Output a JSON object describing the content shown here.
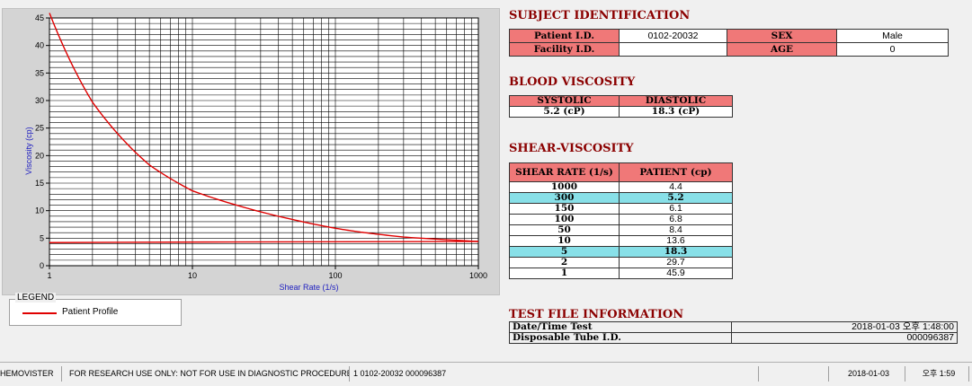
{
  "chart_data": {
    "type": "line",
    "xscale": "log",
    "xlabel": "Shear Rate (1/s)",
    "ylabel": "Viscosity (cp)",
    "xlim": [
      1,
      1000
    ],
    "ylim": [
      0,
      45
    ],
    "x_ticks": [
      "1",
      "10",
      "100",
      "1000"
    ],
    "y_ticks": [
      "0",
      "5",
      "10",
      "15",
      "20",
      "25",
      "30",
      "35",
      "40",
      "45"
    ],
    "grid": true,
    "series": [
      {
        "name": "Patient Profile",
        "color": "#e00000",
        "x": [
          1,
          2,
          5,
          10,
          50,
          100,
          150,
          300,
          1000
        ],
        "y": [
          45.9,
          29.7,
          18.3,
          13.6,
          8.4,
          6.8,
          6.1,
          5.2,
          4.4
        ]
      },
      {
        "name": "",
        "color": "#e00000",
        "x": [
          1,
          12,
          1000
        ],
        "y": [
          4.2,
          4.3,
          4.4
        ]
      }
    ]
  },
  "legend": {
    "title": "LEGEND",
    "label": "Patient Profile"
  },
  "subject": {
    "title": "SUBJECT IDENTIFICATION",
    "patient_label": "Patient I.D.",
    "patient_value": "0102-20032",
    "sex_label": "SEX",
    "sex_value": "Male",
    "facility_label": "Facility I.D.",
    "facility_value": "",
    "age_label": "AGE",
    "age_value": "0"
  },
  "blood": {
    "title": "BLOOD VISCOSITY",
    "systolic_label": "SYSTOLIC",
    "diastolic_label": "DIASTOLIC",
    "systolic_value": "5.2 (cP)",
    "diastolic_value": "18.3 (cP)"
  },
  "shear": {
    "title": "SHEAR-VISCOSITY",
    "col1": "SHEAR RATE (1/s)",
    "col2": "PATIENT (cp)",
    "rows": [
      {
        "rate": "1000",
        "visc": "4.4"
      },
      {
        "rate": "300",
        "visc": "5.2"
      },
      {
        "rate": "150",
        "visc": "6.1"
      },
      {
        "rate": "100",
        "visc": "6.8"
      },
      {
        "rate": "50",
        "visc": "8.4"
      },
      {
        "rate": "10",
        "visc": "13.6"
      },
      {
        "rate": "5",
        "visc": "18.3"
      },
      {
        "rate": "2",
        "visc": "29.7"
      },
      {
        "rate": "1",
        "visc": "45.9"
      }
    ]
  },
  "testfile": {
    "title": "TEST FILE INFORMATION",
    "date_label": "Date/Time Test",
    "date_value": "2018-01-03   오후 1:48:00",
    "tube_label": "Disposable Tube I.D.",
    "tube_value": "000096387"
  },
  "statusbar": {
    "app": "HEMOVISTER",
    "notice": "FOR RESEARCH USE ONLY: NOT FOR USE IN DIAGNOSTIC PROCEDURES",
    "record": "1  0102-20032  000096387",
    "date": "2018-01-03",
    "time": "오후 1:59"
  }
}
